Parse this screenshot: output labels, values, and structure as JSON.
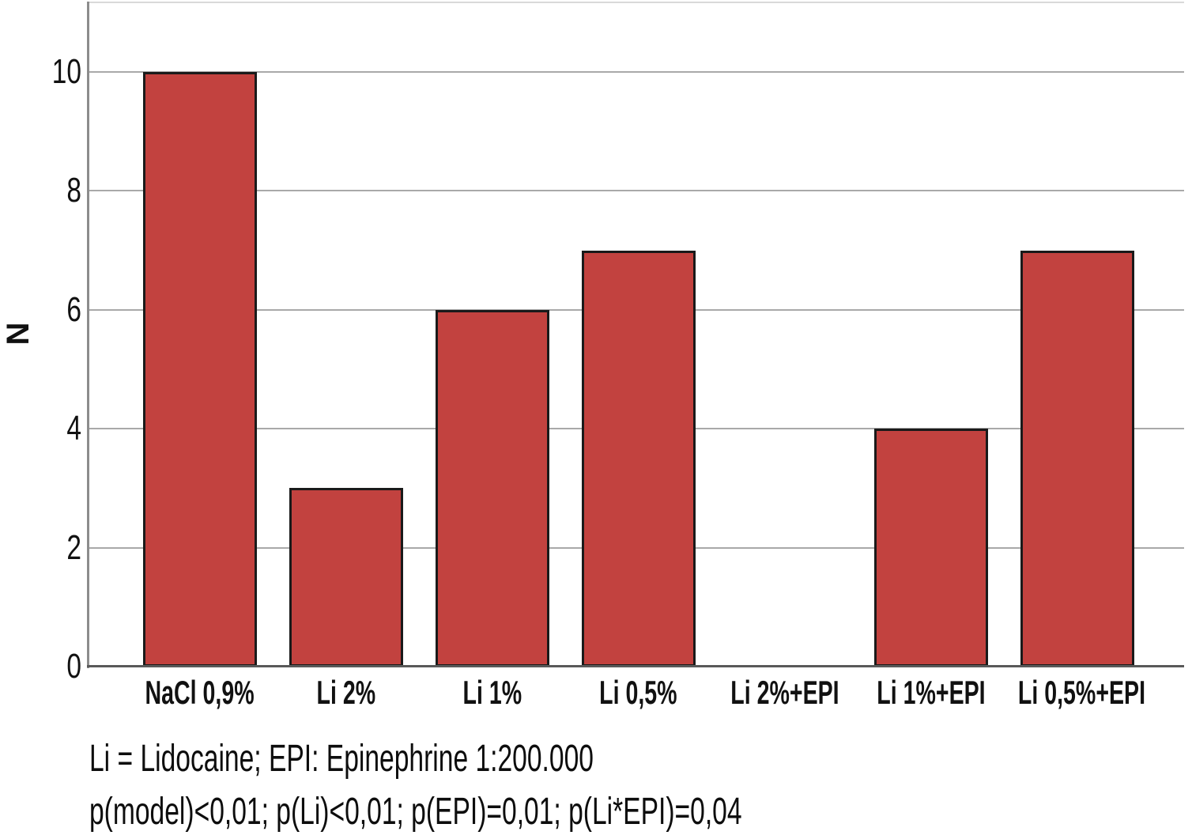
{
  "chart_data": {
    "type": "bar",
    "categories": [
      "NaCl 0,9%",
      "Li 2%",
      "Li 1%",
      "Li 0,5%",
      "Li 2%+EPI",
      "Li 1%+EPI",
      "Li 0,5%+EPI"
    ],
    "values": [
      10,
      3,
      6,
      7,
      0,
      4,
      7
    ],
    "title": "",
    "xlabel": "",
    "ylabel": "N",
    "ylim": [
      0,
      11.2
    ],
    "yticks": [
      0,
      2,
      4,
      6,
      8,
      10
    ],
    "grid": true,
    "legend_position": "none",
    "bar_color": "#c2423f",
    "bar_border_color": "#1a1a1a",
    "gridline_color": "#a9a9a9",
    "axis_line_color": "#8c8c8c",
    "baseline_color": "#595959",
    "plot_top_border_color": "#d9d9d9"
  },
  "footnotes": {
    "abbreviations": "Li = Lidocaine; EPI: Epinephrine 1:200.000",
    "p_values": "p(model)<0,01; p(Li)<0,01; p(EPI)=0,01; p(Li*EPI)=0,04"
  }
}
